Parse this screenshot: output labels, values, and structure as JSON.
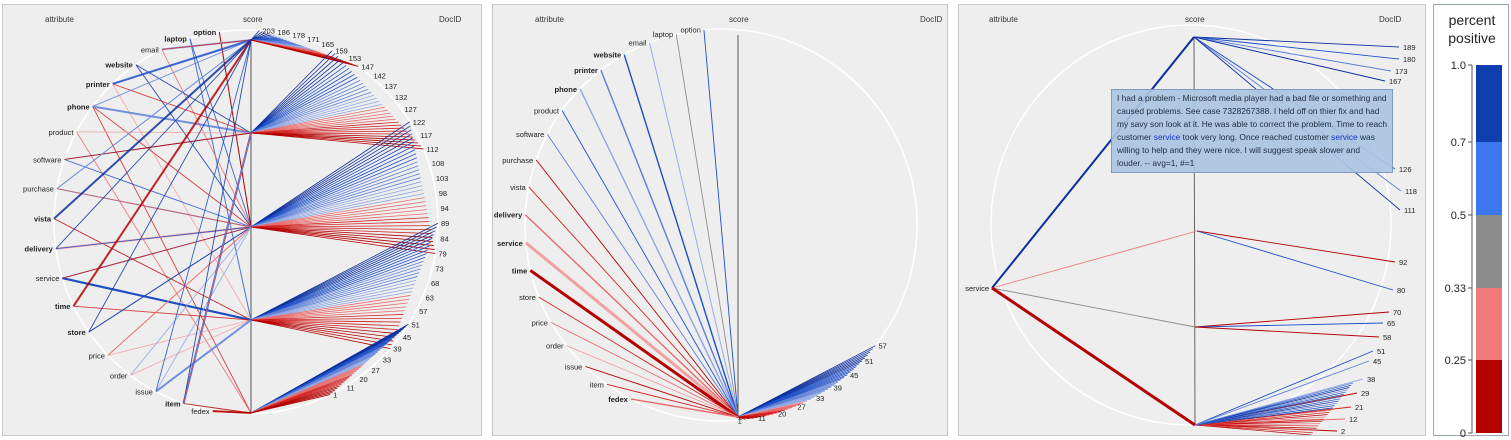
{
  "chart_data": [
    {
      "type": "other",
      "headers": [
        "attribute",
        "score",
        "DocID"
      ],
      "attributes": [
        "option",
        "laptop",
        "email",
        "website",
        "printer",
        "phone",
        "product",
        "software",
        "purchase",
        "vista",
        "delivery",
        "service",
        "time",
        "store",
        "price",
        "order",
        "issue",
        "item",
        "fedex"
      ],
      "bold_attributes": [
        "option",
        "laptop",
        "website",
        "printer",
        "phone",
        "vista",
        "delivery",
        "time",
        "store",
        "item"
      ],
      "score_levels": [
        "1.0",
        "0.7",
        "0.5",
        "0.33",
        "0.25"
      ],
      "doc_ids": [
        "203",
        "186",
        "178",
        "171",
        "165",
        "159",
        "153",
        "147",
        "142",
        "137",
        "132",
        "127",
        "122",
        "117",
        "112",
        "108",
        "103",
        "98",
        "94",
        "89",
        "84",
        "79",
        "73",
        "68",
        "63",
        "57",
        "51",
        "45",
        "39",
        "33",
        "27",
        "20",
        "11",
        "1"
      ]
    },
    {
      "type": "other",
      "headers": [
        "attribute",
        "score",
        "DocID"
      ],
      "attributes": [
        "option",
        "laptop",
        "email",
        "website",
        "printer",
        "phone",
        "product",
        "software",
        "purchase",
        "vista",
        "delivery",
        "service",
        "time",
        "store",
        "price",
        "order",
        "issue",
        "item",
        "fedex"
      ],
      "bold_attributes": [
        "website",
        "printer",
        "phone",
        "delivery",
        "service",
        "time",
        "fedex"
      ],
      "doc_ids": [
        "57",
        "51",
        "45",
        "39",
        "33",
        "27",
        "20",
        "11",
        "1"
      ]
    },
    {
      "type": "other",
      "headers": [
        "attribute",
        "score",
        "DocID"
      ],
      "attributes": [
        "service"
      ],
      "doc_ids": [
        "189",
        "180",
        "173",
        "167",
        "126",
        "118",
        "111",
        "92",
        "80",
        "70",
        "65",
        "58",
        "51",
        "45",
        "38",
        "29",
        "21",
        "12",
        "2"
      ],
      "tooltip": {
        "before": "I had a problem - Microsoft media player had a bad file or something and caused problems. See case 7328267388. I held off on thier fix and had my savy son look at it. He was able to correct the problem. Time to reach customer ",
        "kw1": "service",
        "middle": " took very long. Once reached customer ",
        "kw2": "service",
        "after": " was willing to help and they were nice. I will suggest speak slower and louder. -- avg=1, #=1"
      }
    }
  ],
  "legend": {
    "title_line1": "percent",
    "title_line2": "positive",
    "ticks": [
      "1.0",
      "0.7",
      "0.5",
      "0.33",
      "0.25",
      "0"
    ],
    "bands": [
      {
        "from": 1.0,
        "to": 0.7,
        "color": "#0f3fae"
      },
      {
        "from": 0.7,
        "to": 0.5,
        "color": "#3d77ee"
      },
      {
        "from": 0.5,
        "to": 0.33,
        "color": "#8c8c8c"
      },
      {
        "from": 0.33,
        "to": 0.25,
        "color": "#f07a7a"
      },
      {
        "from": 0.25,
        "to": 0.0,
        "color": "#b70000"
      }
    ]
  }
}
